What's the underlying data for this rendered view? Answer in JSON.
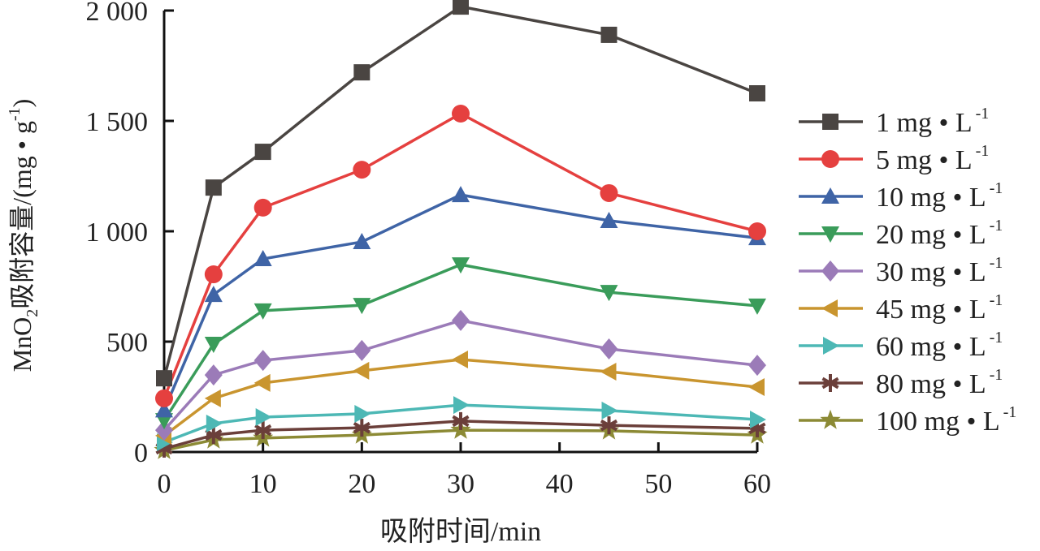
{
  "chart_data": {
    "type": "line",
    "title": "",
    "xlabel": "吸附时间/min",
    "ylabel": {
      "pre": "MnO",
      "sub": "2",
      "mid": "吸附容量/(mg • g",
      "sup": "-1",
      "post": ")"
    },
    "xlim": [
      0,
      60
    ],
    "ylim": [
      0,
      2000
    ],
    "xticks": [
      0,
      10,
      20,
      30,
      40,
      50,
      60
    ],
    "xtick_labels": [
      "0",
      "10",
      "20",
      "30",
      "40",
      "50",
      "60"
    ],
    "yticks": [
      0,
      500,
      1000,
      1500,
      2000
    ],
    "ytick_labels": [
      "0",
      "500",
      "1 000",
      "1 500",
      "2 000"
    ],
    "grid": false,
    "legend_position": "right",
    "x": [
      0,
      5,
      10,
      20,
      30,
      45,
      60
    ],
    "series": [
      {
        "label": "1 mg • L",
        "sup": "-1",
        "color": "#4a4542",
        "marker": "square",
        "values": [
          334,
          1198,
          1360,
          1720,
          2018,
          1890,
          1625
        ]
      },
      {
        "label": "5 mg • L",
        "sup": "-1",
        "color": "#e5403f",
        "marker": "circle",
        "values": [
          243,
          805,
          1107,
          1279,
          1533,
          1173,
          1000
        ]
      },
      {
        "label": "10 mg • L",
        "sup": "-1",
        "color": "#3f64a6",
        "marker": "triangle-up",
        "values": [
          190,
          713,
          875,
          952,
          1165,
          1048,
          970
        ]
      },
      {
        "label": "20 mg • L",
        "sup": "-1",
        "color": "#3a9c5a",
        "marker": "triangle-down",
        "values": [
          143,
          489,
          640,
          665,
          849,
          724,
          662
        ]
      },
      {
        "label": "30 mg • L",
        "sup": "-1",
        "color": "#9b7bb8",
        "marker": "diamond",
        "values": [
          99,
          349,
          415,
          460,
          596,
          467,
          393
        ]
      },
      {
        "label": "45 mg • L",
        "sup": "-1",
        "color": "#c9952f",
        "marker": "triangle-left",
        "values": [
          74,
          243,
          313,
          368,
          419,
          364,
          294
        ]
      },
      {
        "label": "60 mg • L",
        "sup": "-1",
        "color": "#4db8b5",
        "marker": "triangle-right",
        "values": [
          44,
          129,
          158,
          173,
          213,
          188,
          147
        ]
      },
      {
        "label": "80 mg • L",
        "sup": "-1",
        "color": "#6b3f3a",
        "marker": "asterisk",
        "values": [
          15,
          77,
          99,
          110,
          140,
          121,
          107
        ]
      },
      {
        "label": "100 mg • L",
        "sup": "-1",
        "color": "#8c8a35",
        "marker": "star",
        "values": [
          7,
          55,
          63,
          77,
          99,
          96,
          77
        ]
      }
    ]
  }
}
